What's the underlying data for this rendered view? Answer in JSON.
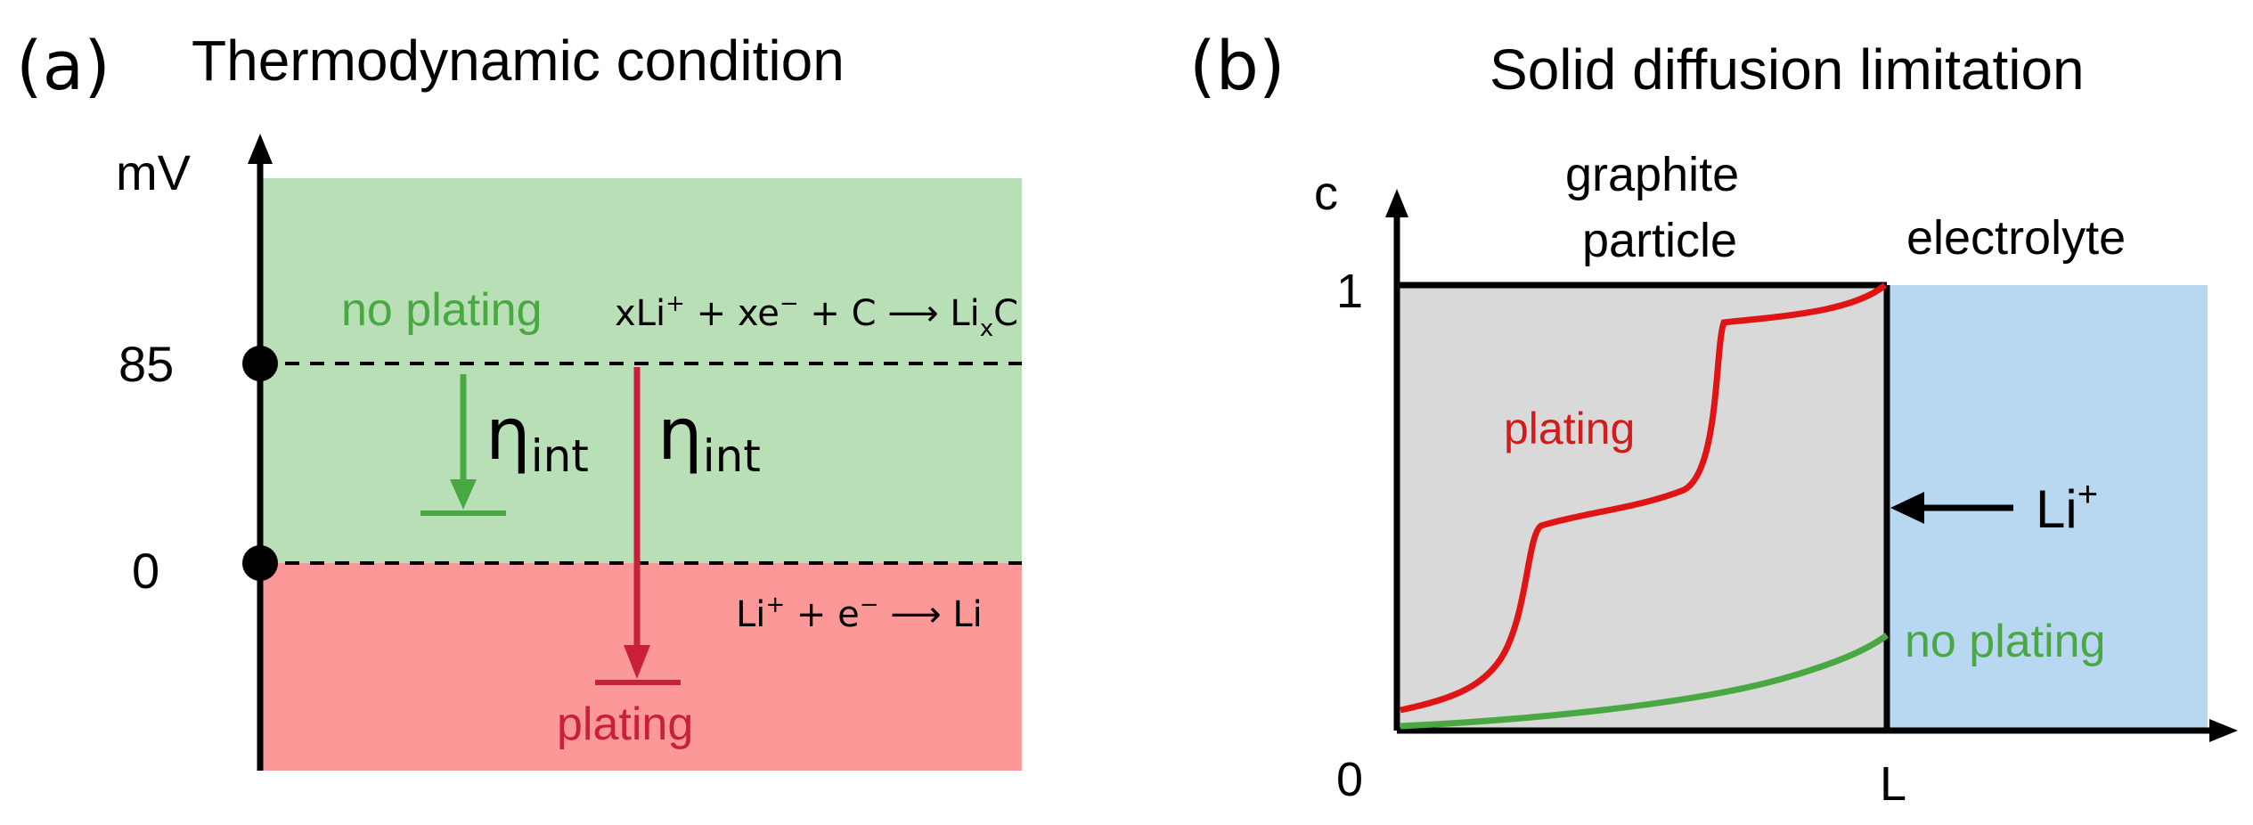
{
  "panel_a": {
    "label": "(a)",
    "title": "Thermodynamic condition",
    "y_unit": "mV",
    "tick_85": "85",
    "tick_0": "0",
    "region_top_label": "no plating",
    "region_bottom_label": "plating",
    "eq_intercalation": {
      "part1": "xLi",
      "sup1": "+",
      "part2": " + xe",
      "sup2": "−",
      "part3": " + C ⟶ Li",
      "sub": "x",
      "part4": "C"
    },
    "eq_plating": {
      "part1": "Li",
      "sup1": "+",
      "part2": " + e",
      "sup2": "−",
      "part3": " ⟶ Li"
    },
    "eta_symbol": "η",
    "eta_sub": "int",
    "colors": {
      "green_region": "#b9dfb6",
      "red_region": "#fc9898",
      "green": "#4aa843",
      "red": "#c8203a"
    }
  },
  "panel_b": {
    "label": "(b)",
    "title": "Solid diffusion limitation",
    "y_axis_label": "c",
    "y_tick_1": "1",
    "origin_label": "0",
    "x_tick_L": "L",
    "graphite_label_line1": "graphite",
    "graphite_label_line2": "particle",
    "electrolyte_label": "electrolyte",
    "plating_curve_label": "plating",
    "no_plating_curve_label": "no plating",
    "li_ion": {
      "text": "Li",
      "sup": "+"
    },
    "colors": {
      "particle_fill": "#d9d9d9",
      "electrolyte_fill": "#b7d8f0",
      "plating_curve": "#e01414",
      "no_plating_curve": "#4aa843"
    }
  }
}
